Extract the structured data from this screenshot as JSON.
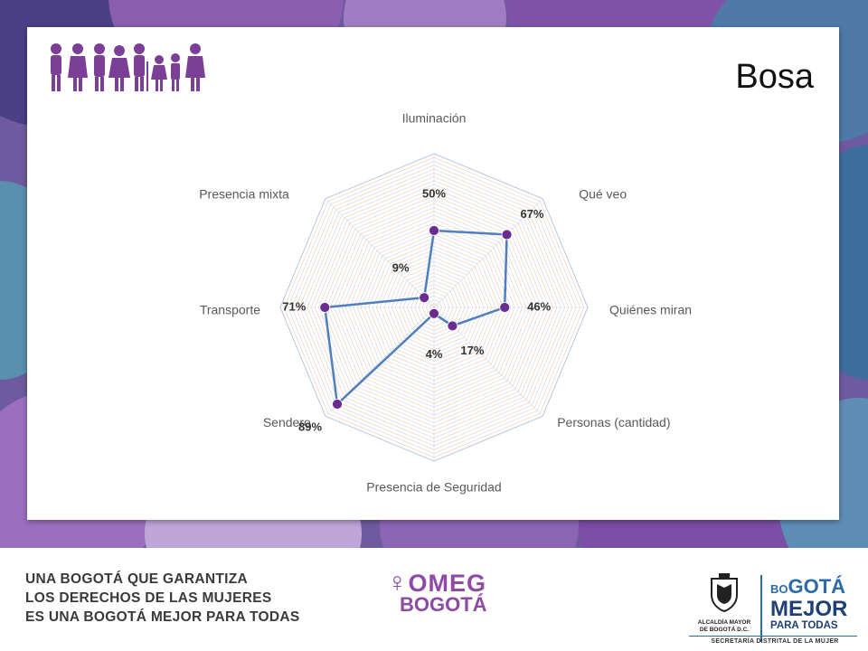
{
  "slide": {
    "title": "Bosa"
  },
  "chart_data": {
    "type": "radar",
    "categories": [
      "Iluminación",
      "Qué veo",
      "Quiénes miran",
      "Personas (cantidad)",
      "Presencia de Seguridad",
      "Sendero",
      "Transporte",
      "Presencia mixta"
    ],
    "values": [
      50,
      67,
      46,
      17,
      4,
      89,
      71,
      9
    ],
    "value_labels": [
      "50%",
      "67%",
      "46%",
      "17%",
      "4%",
      "89%",
      "71%",
      "9%"
    ],
    "rmax": 100,
    "grid": true,
    "series_color": "#4f7fbf",
    "marker_color": "#6a2d8f"
  },
  "footer": {
    "slogan_lines": [
      "UNA BOGOTÁ QUE GARANTIZA",
      "LOS DERECHOS DE LAS MUJERES",
      "ES UNA BOGOTÁ MEJOR PARA TODAS"
    ],
    "omeg_top": "OMEG",
    "omeg_bottom": "BOGOTÁ",
    "alcaldia_line1": "ALCALDÍA MAYOR",
    "alcaldia_line2": "DE BOGOTÁ D.C.",
    "bmpt_small": "BO",
    "bmpt_big": "GOTÁ",
    "bmpt_line2": "MEJOR",
    "bmpt_line3": "PARA TODAS",
    "secretaria": "SECRETARÍA DISTRITAL DE LA MUJER"
  },
  "colors": {
    "banner_purple": "#6e5a9e",
    "accent_purple": "#8e4aa4",
    "bogota_blue": "#2d6aa8"
  }
}
